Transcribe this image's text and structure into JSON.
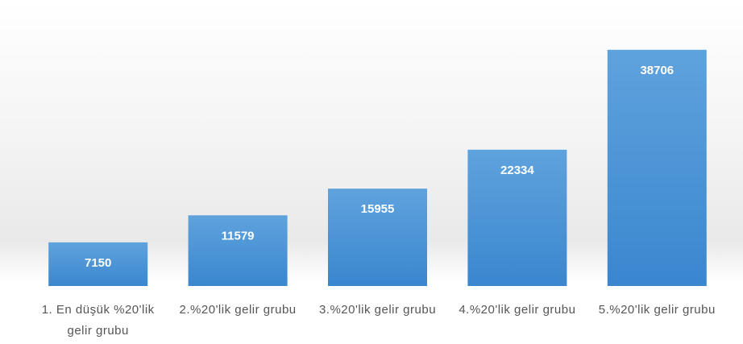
{
  "chart_data": {
    "type": "bar",
    "categories": [
      "1. En düşük  %20'lik gelir grubu",
      "2.%20'lik gelir grubu",
      "3.%20'lik gelir grubu",
      "4.%20'lik gelir grubu",
      "5.%20'lik gelir grubu"
    ],
    "values": [
      7150,
      11579,
      15955,
      22334,
      38706
    ],
    "color": "#4a90d4",
    "ylim": [
      0,
      40000
    ]
  }
}
